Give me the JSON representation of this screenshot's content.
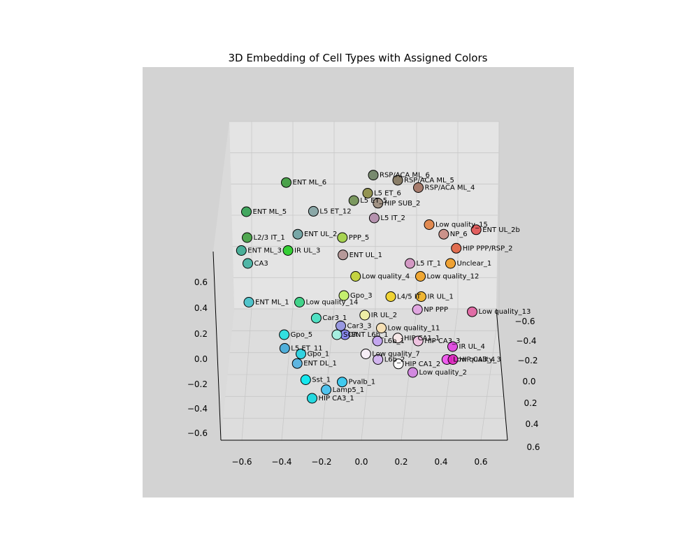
{
  "chart_data": {
    "type": "scatter",
    "title": "3D Embedding of Cell Types with Assigned Colors",
    "projection": "3d",
    "grid": true,
    "xlim": [
      -0.7,
      0.7
    ],
    "ylim": [
      -0.7,
      0.7
    ],
    "zlim": [
      -0.7,
      0.7
    ],
    "x_ticks": [
      "−0.6",
      "−0.4",
      "−0.2",
      "0.0",
      "0.2",
      "0.4",
      "0.6"
    ],
    "y_ticks": [
      "−0.6",
      "−0.4",
      "−0.2",
      "0.0",
      "0.2",
      "0.4",
      "0.6"
    ],
    "z_ticks": [
      "−0.6",
      "−0.4",
      "−0.2",
      "0.0",
      "0.2",
      "0.4",
      "0.6"
    ],
    "colors": {
      "figure_background": "#ffffff",
      "axes_background": "#d3d3d3",
      "pane_back": "#e4e4e4",
      "pane_side": "#dadada",
      "pane_floor": "#dddddd",
      "marker_edge": "#000000"
    },
    "points": [
      {
        "label": "RSP/ACA ML_6",
        "x": 0.08,
        "y": -0.62,
        "z": 0.62,
        "color": "#6b7f62"
      },
      {
        "label": "RSP/ACA ML_5",
        "x": 0.2,
        "y": -0.6,
        "z": 0.6,
        "color": "#80725a"
      },
      {
        "label": "RSP/ACA ML_4",
        "x": 0.3,
        "y": -0.55,
        "z": 0.6,
        "color": "#a0705f"
      },
      {
        "label": "L5 ET_6",
        "x": 0.05,
        "y": -0.55,
        "z": 0.55,
        "color": "#8a8a40"
      },
      {
        "label": "L5 ET_5",
        "x": -0.02,
        "y": -0.5,
        "z": 0.55,
        "color": "#6f8f50"
      },
      {
        "label": "HIP SUB_2",
        "x": 0.1,
        "y": -0.52,
        "z": 0.5,
        "color": "#9a8a7a"
      },
      {
        "label": "L5 IT_2",
        "x": 0.08,
        "y": -0.48,
        "z": 0.42,
        "color": "#b08aa8"
      },
      {
        "label": "L5 ET_12",
        "x": -0.22,
        "y": -0.48,
        "z": 0.48,
        "color": "#7fa0a0"
      },
      {
        "label": "ENT ML_6",
        "x": -0.35,
        "y": -0.6,
        "z": 0.58,
        "color": "#3a9a3a"
      },
      {
        "label": "ENT ML_5",
        "x": -0.55,
        "y": -0.5,
        "z": 0.45,
        "color": "#30a050"
      },
      {
        "label": "ENT ML_3",
        "x": -0.58,
        "y": -0.35,
        "z": 0.3,
        "color": "#3aa890"
      },
      {
        "label": "ENT UL_2",
        "x": -0.3,
        "y": -0.4,
        "z": 0.38,
        "color": "#6aa0a0"
      },
      {
        "label": "L2/3 IT_1",
        "x": -0.55,
        "y": -0.4,
        "z": 0.35,
        "color": "#40a040"
      },
      {
        "label": "IR UL_3",
        "x": -0.35,
        "y": -0.35,
        "z": 0.3,
        "color": "#22cc22"
      },
      {
        "label": "NP_6",
        "x": 0.42,
        "y": -0.4,
        "z": 0.38,
        "color": "#c88880"
      },
      {
        "label": "HIP PPP/RSP_2",
        "x": 0.48,
        "y": -0.35,
        "z": 0.32,
        "color": "#e06040"
      },
      {
        "label": "ENT UL_2b",
        "x": 0.58,
        "y": -0.4,
        "z": 0.42,
        "color": "#e05050"
      },
      {
        "label": "Unclear_1",
        "x": 0.45,
        "y": -0.3,
        "z": 0.25,
        "color": "#f09a20"
      },
      {
        "label": "L5 IT_1",
        "x": 0.25,
        "y": -0.3,
        "z": 0.25,
        "color": "#d090c0"
      },
      {
        "label": "Low quality_4",
        "x": -0.02,
        "y": -0.25,
        "z": 0.2,
        "color": "#c0d030"
      },
      {
        "label": "Low quality_12",
        "x": 0.3,
        "y": -0.25,
        "z": 0.2,
        "color": "#f0a020"
      },
      {
        "label": "Low quality_15",
        "x": 0.35,
        "y": -0.45,
        "z": 0.4,
        "color": "#e08040"
      },
      {
        "label": "PPP_5",
        "x": -0.08,
        "y": -0.4,
        "z": 0.35,
        "color": "#a0d040"
      },
      {
        "label": "ENT UL_1",
        "x": -0.08,
        "y": -0.32,
        "z": 0.3,
        "color": "#b09090"
      },
      {
        "label": "L4/5 IT",
        "x": 0.15,
        "y": -0.15,
        "z": 0.15,
        "color": "#f0d020"
      },
      {
        "label": "IR UL_1",
        "x": 0.3,
        "y": -0.15,
        "z": 0.15,
        "color": "#f0b020"
      },
      {
        "label": "NP PPP",
        "x": 0.28,
        "y": -0.1,
        "z": 0.1,
        "color": "#e0a0e0"
      },
      {
        "label": "IR UL_2",
        "x": 0.02,
        "y": -0.1,
        "z": 0.05,
        "color": "#f0f0a0"
      },
      {
        "label": "Low quality_13",
        "x": 0.55,
        "y": -0.1,
        "z": 0.08,
        "color": "#e060a0"
      },
      {
        "label": "Low quality_11",
        "x": 0.1,
        "y": -0.05,
        "z": 0.0,
        "color": "#f8e0b0"
      },
      {
        "label": "Low quality_7",
        "x": 0.02,
        "y": 0.05,
        "z": -0.1,
        "color": "#f8f0f8"
      },
      {
        "label": "Low quality_3",
        "x": 0.42,
        "y": 0.05,
        "z": -0.15,
        "color": "#f050f0"
      },
      {
        "label": "Low quality_2",
        "x": 0.25,
        "y": 0.1,
        "z": -0.2,
        "color": "#d080e0"
      },
      {
        "label": "Low quality_14",
        "x": -0.3,
        "y": -0.15,
        "z": 0.1,
        "color": "#30d080"
      },
      {
        "label": "IR UL_4",
        "x": 0.45,
        "y": 0.0,
        "z": -0.1,
        "color": "#e040e0"
      },
      {
        "label": "HIP CA3_3",
        "x": 0.28,
        "y": 0.0,
        "z": -0.05,
        "color": "#f0c0e0"
      },
      {
        "label": "HIP CA3_4",
        "x": 0.45,
        "y": 0.05,
        "z": -0.15,
        "color": "#e020c0"
      },
      {
        "label": "HIP CA1_1",
        "x": 0.18,
        "y": -0.02,
        "z": -0.05,
        "color": "#f8e8e8"
      },
      {
        "label": "HIP CA1_2",
        "x": 0.18,
        "y": 0.08,
        "z": -0.15,
        "color": "#ffffff"
      },
      {
        "label": "L6b_1",
        "x": 0.08,
        "y": 0.0,
        "z": -0.05,
        "color": "#c0a0f0"
      },
      {
        "label": "L6b_2",
        "x": 0.08,
        "y": 0.05,
        "z": -0.15,
        "color": "#d0b0f0"
      },
      {
        "label": "ENT L6b_1",
        "x": -0.08,
        "y": -0.02,
        "z": -0.02,
        "color": "#8080f0"
      },
      {
        "label": "Car3_3",
        "x": -0.1,
        "y": -0.05,
        "z": 0.02,
        "color": "#9090e0"
      },
      {
        "label": "Car3_1",
        "x": -0.22,
        "y": -0.08,
        "z": 0.05,
        "color": "#40e0c0"
      },
      {
        "label": "SOA",
        "x": -0.12,
        "y": -0.02,
        "z": -0.02,
        "color": "#a0f0e0"
      },
      {
        "label": "Gpo_3",
        "x": -0.08,
        "y": -0.18,
        "z": 0.12,
        "color": "#c0f060"
      },
      {
        "label": "Gpo_5",
        "x": -0.38,
        "y": -0.02,
        "z": -0.02,
        "color": "#20e0e0"
      },
      {
        "label": "Gpo_1",
        "x": -0.3,
        "y": 0.05,
        "z": -0.1,
        "color": "#20d0e0"
      },
      {
        "label": "L5 ET_11",
        "x": -0.38,
        "y": 0.05,
        "z": -0.05,
        "color": "#40a8d8"
      },
      {
        "label": "ENT DL_1",
        "x": -0.32,
        "y": 0.1,
        "z": -0.12,
        "color": "#50b0e0"
      },
      {
        "label": "ENT ML_1",
        "x": -0.55,
        "y": -0.15,
        "z": 0.1,
        "color": "#40c0c8"
      },
      {
        "label": "CA3",
        "x": -0.55,
        "y": -0.3,
        "z": 0.25,
        "color": "#40b0a0"
      },
      {
        "label": "HIP CA3_1",
        "x": -0.25,
        "y": 0.2,
        "z": -0.3,
        "color": "#10d8e0"
      },
      {
        "label": "Lamp5_1",
        "x": -0.18,
        "y": 0.18,
        "z": -0.25,
        "color": "#40c0f0"
      },
      {
        "label": "Sst_1",
        "x": -0.28,
        "y": 0.15,
        "z": -0.2,
        "color": "#00e8f0"
      },
      {
        "label": "Pvalb_1",
        "x": -0.1,
        "y": 0.15,
        "z": -0.22,
        "color": "#30c8f0"
      }
    ]
  }
}
